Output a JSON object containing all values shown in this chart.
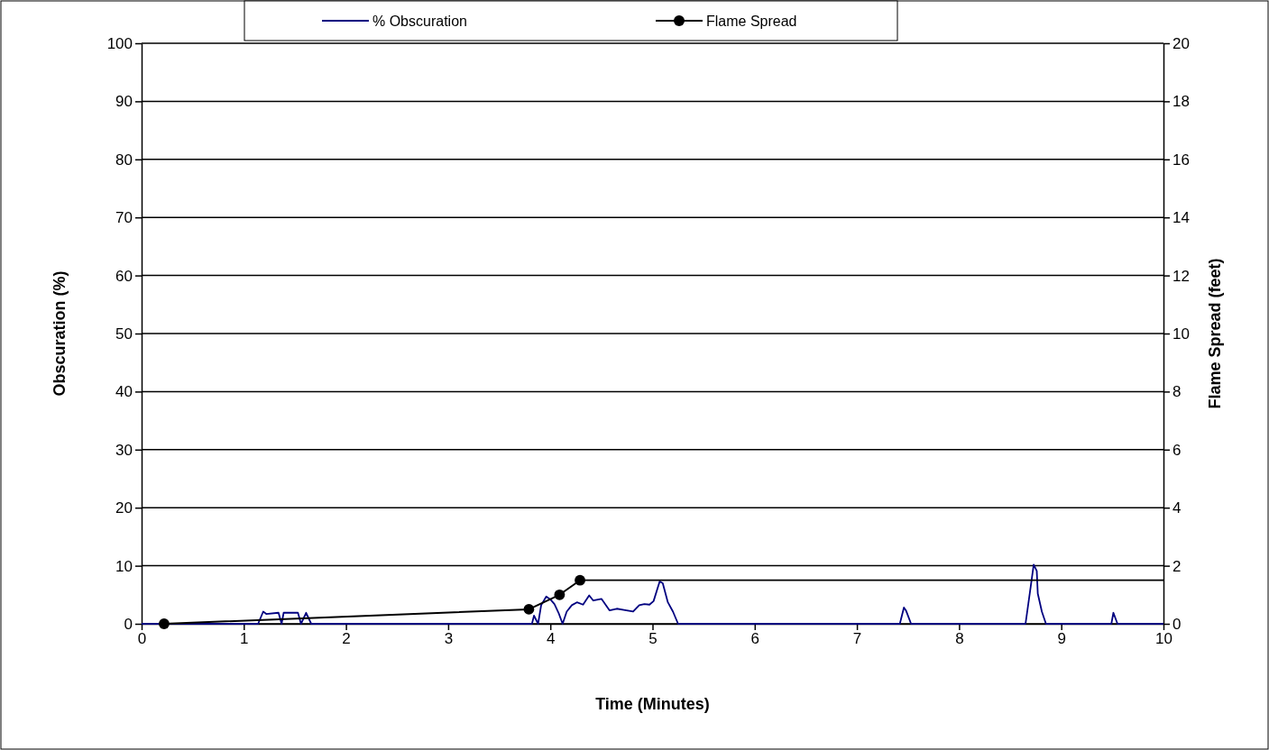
{
  "chart_data": {
    "type": "line",
    "xlabel": "Time (Minutes)",
    "ylabel": "Obscuration (%)",
    "y2label": "Flame Spread (feet)",
    "xlim": [
      0,
      10
    ],
    "xticks": [
      0,
      1,
      2,
      3,
      4,
      5,
      6,
      7,
      8,
      9,
      10
    ],
    "ylim": [
      0,
      100
    ],
    "yticks": [
      0,
      10,
      20,
      30,
      40,
      50,
      60,
      70,
      80,
      90,
      100
    ],
    "y2lim": [
      0,
      20
    ],
    "y2ticks": [
      0,
      2,
      4,
      6,
      8,
      10,
      12,
      14,
      16,
      18,
      20
    ],
    "grid": "y",
    "legend": "top",
    "line_style": "solid",
    "series": [
      {
        "name": "% Obscuration",
        "color": "#000080",
        "marker": "none",
        "x": [
          0,
          1.14,
          1.19,
          1.22,
          1.34,
          1.37,
          1.39,
          1.53,
          1.56,
          1.61,
          1.66,
          3.82,
          3.84,
          3.88,
          3.91,
          3.96,
          4.0,
          4.04,
          4.08,
          4.12,
          4.16,
          4.21,
          4.26,
          4.32,
          4.38,
          4.42,
          4.5,
          4.58,
          4.65,
          4.72,
          4.81,
          4.87,
          4.92,
          4.97,
          5.01,
          5.07,
          5.1,
          5.15,
          5.2,
          5.25,
          7.42,
          7.46,
          7.48,
          7.53,
          8.65,
          8.7,
          8.73,
          8.76,
          8.77,
          8.81,
          8.85,
          9.49,
          9.51,
          9.55,
          10
        ],
        "values": [
          0,
          0,
          2.1,
          1.7,
          1.9,
          0,
          1.9,
          1.9,
          0,
          1.9,
          0,
          0,
          1.4,
          0,
          3.2,
          4.7,
          4.2,
          3.4,
          1.9,
          0,
          2.1,
          3.2,
          3.7,
          3.3,
          4.9,
          4.0,
          4.3,
          2.3,
          2.6,
          2.4,
          2.1,
          3.2,
          3.4,
          3.3,
          3.9,
          7.3,
          7.0,
          3.7,
          2.1,
          0,
          0,
          2.8,
          2.3,
          0,
          0,
          6.3,
          10.2,
          9.1,
          5.2,
          2.1,
          0,
          0,
          1.9,
          0,
          0
        ]
      },
      {
        "name": "Flame Spread",
        "color": "#000000",
        "marker": "circle",
        "axis": "y2",
        "x": [
          0.22,
          3.79,
          4.09,
          4.29
        ],
        "values": [
          0,
          0.5,
          1.0,
          1.5
        ]
      },
      {
        "color": "#000000",
        "marker": "none",
        "axis": "y2",
        "x": [
          4.29,
          10
        ],
        "values": [
          1.5,
          1.5
        ]
      }
    ]
  }
}
